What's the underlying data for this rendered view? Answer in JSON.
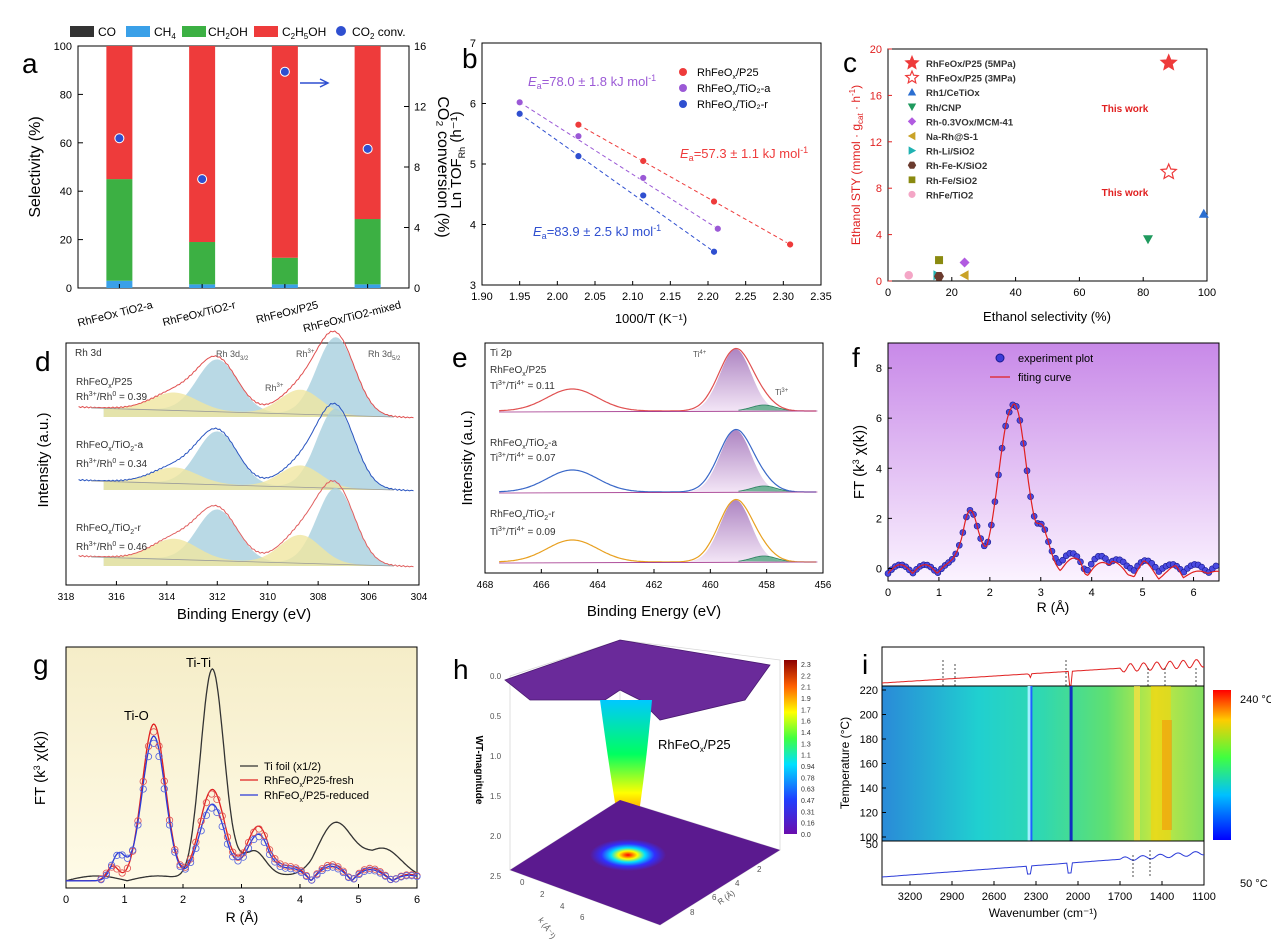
{
  "chart_data": [
    {
      "type": "bar",
      "panel": "a",
      "legend": [
        "CO",
        "CH4",
        "CH2OH",
        "C2H5OH",
        "CO2 conv."
      ],
      "categories": [
        "RhFeOx TiO2-a",
        "RhFeOx/TiO2-r",
        "RhFeOx/P25",
        "RhFeOx/TiO2-mixed"
      ],
      "ylabel": "Selectivity (%)",
      "y2label": "CO2 conversion (%)",
      "ylim": [
        0,
        100
      ],
      "y2lim": [
        0,
        16
      ],
      "yticks": [
        "0",
        "20",
        "40",
        "60",
        "80",
        "100"
      ],
      "y2ticks": [
        "0",
        "4",
        "8",
        "12",
        "16"
      ],
      "series": [
        {
          "name": "CO",
          "values": [
            0,
            0,
            0,
            0
          ],
          "color": "#333333"
        },
        {
          "name": "CH4",
          "values": [
            3,
            1.5,
            1.5,
            1.5
          ],
          "color": "#3aa0e8"
        },
        {
          "name": "CH2OH",
          "values": [
            42,
            17.5,
            11,
            27
          ],
          "color": "#3cb043"
        },
        {
          "name": "C2H5OH",
          "values": [
            55,
            81,
            87.5,
            71.5
          ],
          "color": "#ee3b3b"
        }
      ],
      "conversion": [
        9.9,
        7.2,
        14.3,
        9.2
      ]
    },
    {
      "type": "scatter",
      "panel": "b",
      "xlabel": "1000/T (K⁻¹)",
      "ylabel": "Ln TOF",
      "xlim": [
        1.9,
        2.35
      ],
      "ylim": [
        3,
        7
      ],
      "xticks": [
        "1.90",
        "1.95",
        "2.00",
        "2.05",
        "2.10",
        "2.15",
        "2.20",
        "2.25",
        "2.30",
        "2.35"
      ],
      "yticks": [
        "3",
        "4",
        "5",
        "6",
        "7"
      ],
      "series": [
        {
          "name": "RhFeOx/P25",
          "color": "#ee3b3b",
          "x": [
            2.028,
            2.114,
            2.208,
            2.309
          ],
          "y": [
            5.65,
            5.05,
            4.38,
            3.67
          ],
          "fit": [
            [
              2.028,
              5.65
            ],
            [
              2.309,
              3.67
            ]
          ]
        },
        {
          "name": "RhFeOx/TiO2-a",
          "color": "#9b59d6",
          "x": [
            1.95,
            2.028,
            2.114,
            2.213
          ],
          "y": [
            6.02,
            5.46,
            4.77,
            3.93
          ],
          "fit": [
            [
              1.95,
              6.02
            ],
            [
              2.213,
              3.93
            ]
          ]
        },
        {
          "name": "RhFeOx/TiO2-r",
          "color": "#2f4fd0",
          "x": [
            1.95,
            2.028,
            2.114,
            2.208
          ],
          "y": [
            5.83,
            5.13,
            4.48,
            3.55
          ],
          "fit": [
            [
              1.95,
              5.83
            ],
            [
              2.208,
              3.55
            ]
          ]
        }
      ],
      "annotations": {
        "a": "E = 78.0 ± 1.8 kJ mol",
        "p25": "E = 57.3 ± 1.1 kJ mol",
        "r": "E = 83.9 ± 2.5 kJ mol"
      }
    },
    {
      "type": "scatter",
      "panel": "c",
      "xlabel": "Ethanol selectivity (%)",
      "ylabel": "Ethanol STY (mmol · g · h)",
      "xlim": [
        0,
        100
      ],
      "ylim": [
        0,
        20
      ],
      "xticks": [
        "0",
        "20",
        "40",
        "60",
        "80",
        "100"
      ],
      "yticks": [
        "0",
        "4",
        "8",
        "12",
        "16",
        "20"
      ],
      "points": [
        {
          "name": "RhFeOx/P25 (5MPa)",
          "x": 88,
          "y": 18.8,
          "shape": "star-filled",
          "color": "#ee3b3b"
        },
        {
          "name": "RhFeOx/P25 (3MPa)",
          "x": 88,
          "y": 9.4,
          "shape": "star-open",
          "color": "#ee3b3b"
        },
        {
          "name": "Rh1/CeTiOx",
          "x": 99,
          "y": 5.8,
          "shape": "triangle-up",
          "color": "#2b6fd1"
        },
        {
          "name": "Rh/CNP",
          "x": 81.5,
          "y": 3.6,
          "shape": "triangle-down",
          "color": "#1f9a5e"
        },
        {
          "name": "Rh-0.3VOx/MCM-41",
          "x": 24,
          "y": 1.6,
          "shape": "diamond",
          "color": "#b15be0"
        },
        {
          "name": "Na-Rh@S-1",
          "x": 24,
          "y": 0.5,
          "shape": "triangle-left",
          "color": "#c9a227"
        },
        {
          "name": "Rh-Li/SiO2",
          "x": 15.5,
          "y": 0.5,
          "shape": "triangle-right",
          "color": "#20b2b2"
        },
        {
          "name": "Rh-Fe-K/SiO2",
          "x": 16,
          "y": 0.4,
          "shape": "hexagon",
          "color": "#6b3b2e"
        },
        {
          "name": "Rh-Fe/SiO2",
          "x": 16,
          "y": 1.8,
          "shape": "square",
          "color": "#8a8a10"
        },
        {
          "name": "RhFe/TiO2",
          "x": 6.5,
          "y": 0.5,
          "shape": "circle",
          "color": "#f4a6c6"
        }
      ],
      "annotations": [
        "This work",
        "This work"
      ]
    },
    {
      "type": "line",
      "panel": "d",
      "title": "Rh 3d",
      "xlabel": "Binding Energy (eV)",
      "ylabel": "Intensity (a.u.)",
      "xlim": [
        318,
        304
      ],
      "xticks": [
        "318",
        "316",
        "314",
        "312",
        "310",
        "308",
        "306",
        "304"
      ],
      "labels": [
        "RhFeOx/P25",
        "Rh3+/Rh0 = 0.39",
        "RhFeOx/TiO2-a",
        "Rh3+/Rh0 = 0.34",
        "RhFeOx/TiO2-r",
        "Rh3+/Rh0 = 0.46"
      ]
    },
    {
      "type": "line",
      "panel": "e",
      "title": "Ti 2p",
      "xlabel": "Binding Energy (eV)",
      "ylabel": "Intensity (a.u.)",
      "xlim": [
        468,
        456
      ],
      "xticks": [
        "468",
        "466",
        "464",
        "462",
        "460",
        "458",
        "456"
      ],
      "labels": [
        "RhFeOx/P25",
        "Ti3+/Ti4+ = 0.11",
        "RhFeOx/TiO2-a",
        "Ti3+/Ti4+ = 0.07",
        "RhFeOx/TiO2-r",
        "Ti3+/Ti4+ = 0.09"
      ]
    },
    {
      "type": "line",
      "panel": "f",
      "xlabel": "R (Å)",
      "ylabel": "FT (k³ χ(k))",
      "xlim": [
        0,
        6.5
      ],
      "ylim": [
        -0.5,
        9
      ],
      "xticks": [
        "0",
        "1",
        "2",
        "3",
        "4",
        "5",
        "6"
      ],
      "yticks": [
        "0",
        "2",
        "4",
        "6",
        "8"
      ],
      "legend": [
        "experiment plot",
        "fiting curve"
      ]
    },
    {
      "type": "line",
      "panel": "g",
      "xlabel": "R (Å)",
      "ylabel": "FT (k³ χ(k))",
      "xlim": [
        0,
        6
      ],
      "xticks": [
        "0",
        "1",
        "2",
        "3",
        "4",
        "5",
        "6"
      ],
      "legend": [
        "Ti foil (x1/2)",
        "RhFeOx/P25-fresh",
        "RhFeOx/P25-reduced"
      ],
      "annotations": [
        "Ti-O",
        "Ti-Ti"
      ]
    },
    {
      "type": "heatmap",
      "panel": "h",
      "zlabel": "WT-magnitude",
      "label": "RhFeOx/P25",
      "zticks": [
        "0.0",
        "0.5",
        "1.0",
        "1.5",
        "2.0",
        "2.5"
      ],
      "colorbar": [
        "2.3",
        "2.2",
        "2.1",
        "1.9",
        "1.7",
        "1.6",
        "1.4",
        "1.3",
        "1.1",
        "0.94",
        "0.78",
        "0.63",
        "0.47",
        "0.31",
        "0.16",
        "0.0"
      ]
    },
    {
      "type": "heatmap",
      "panel": "i",
      "xlabel": "Wavenumber (cm⁻¹)",
      "ylabel": "Temperature (°C)",
      "xticks": [
        "3200",
        "2900",
        "2600",
        "2300",
        "2000",
        "1700",
        "1400",
        "1100"
      ],
      "yticks": [
        "220",
        "200",
        "180",
        "160",
        "140",
        "120",
        "100"
      ],
      "extra_tick": "50",
      "colorbar": [
        "240 °C",
        "50 °C"
      ]
    }
  ],
  "panel_letters": [
    "a",
    "b",
    "c",
    "d",
    "e",
    "f",
    "g",
    "h",
    "i"
  ],
  "text": {
    "a_ylabel": "Selectivity (%)",
    "a_y2label": "CO₂ conversion (%)",
    "b_xlabel": "1000/T (K⁻¹)",
    "c_xlabel": "Ethanol selectivity (%)",
    "c_ylabel": "Ethanol STY (mmol · g  · h )",
    "c_thiswork1": "This work",
    "c_thiswork2": "This work",
    "d_xlabel": "Binding Energy (eV)",
    "d_ylabel": "Intensity (a.u.)",
    "d_title": "Rh 3d",
    "e_xlabel": "Binding Energy (eV)",
    "e_ylabel": "Intensity (a.u.)",
    "e_title": "Ti 2p",
    "f_xlabel": "R (Å)",
    "f_legend1": "experiment plot",
    "f_legend2": "fiting curve",
    "g_xlabel": "R (Å)",
    "g_legend1": "Ti foil (x1/2)",
    "g_legend2": "RhFeOx/P25-fresh",
    "g_legend3": "RhFeOx/P25-reduced",
    "g_tio": "Ti-O",
    "g_titi": "Ti-Ti",
    "h_label": "RhFeOx/P25",
    "h_zlabel": "WT-magnitude",
    "i_xlabel": "Wavenumber (cm⁻¹)",
    "i_ylabel": "Temperature (°C)",
    "i_cb_top": "240 °C",
    "i_cb_bot": "50 °C"
  }
}
